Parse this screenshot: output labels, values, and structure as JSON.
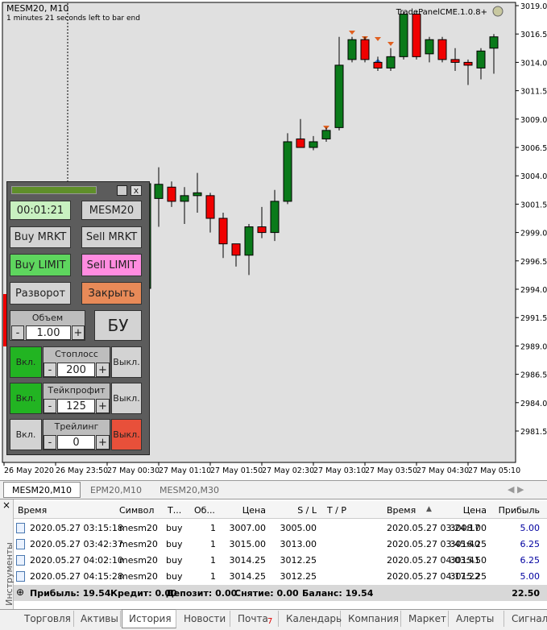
{
  "chart": {
    "symbol_title": "MESM20, M10",
    "timer_note": "1 minutes 21 seconds left to bar end",
    "expert": "TradePanelCME.1.0.8+",
    "price_ticks": [
      {
        "value": 3019,
        "label": "3019.00"
      },
      {
        "value": 3016.5,
        "label": "3016.50"
      },
      {
        "value": 3014,
        "label": "3014.00"
      },
      {
        "value": 3011.5,
        "label": "3011.50"
      },
      {
        "value": 3009,
        "label": "3009.00"
      },
      {
        "value": 3006.5,
        "label": "3006.50"
      },
      {
        "value": 3004,
        "label": "3004.00"
      },
      {
        "value": 3001.5,
        "label": "3001.50"
      },
      {
        "value": 2999,
        "label": "2999.00"
      },
      {
        "value": 2996.5,
        "label": "2996.50"
      },
      {
        "value": 2994,
        "label": "2994.00"
      },
      {
        "value": 2991.5,
        "label": "2991.50"
      },
      {
        "value": 2989,
        "label": "2989.00"
      },
      {
        "value": 2986.5,
        "label": "2986.50"
      },
      {
        "value": 2984,
        "label": "2984.00"
      },
      {
        "value": 2981.5,
        "label": "2981.50"
      }
    ],
    "time_labels": [
      "26 May 2020",
      "26 May 23:50",
      "27 May 00:30",
      "27 May 01:10",
      "27 May 01:50",
      "27 May 02:30",
      "27 May 03:10",
      "27 May 03:50",
      "27 May 04:30",
      "27 May 05:10"
    ],
    "candles": [
      {
        "open": 3002.0,
        "high": 3004.75,
        "low": 2999.5,
        "close": 3003.25
      },
      {
        "open": 3003.0,
        "high": 3003.5,
        "low": 3001.25,
        "close": 3001.75
      },
      {
        "open": 3001.75,
        "high": 3003.0,
        "low": 2999.75,
        "close": 3002.25
      },
      {
        "open": 3002.25,
        "high": 3004.25,
        "low": 3000.75,
        "close": 3002.5
      },
      {
        "open": 3002.25,
        "high": 3002.5,
        "low": 2999.0,
        "close": 3000.25
      },
      {
        "open": 3000.25,
        "high": 3000.75,
        "low": 2996.75,
        "close": 2998.0
      },
      {
        "open": 2998.0,
        "high": 2998.0,
        "low": 2996.0,
        "close": 2997.0
      },
      {
        "open": 2997.0,
        "high": 2999.75,
        "low": 2995.25,
        "close": 2999.5
      },
      {
        "open": 2999.5,
        "high": 3001.25,
        "low": 2998.5,
        "close": 2999.0
      },
      {
        "open": 2999.0,
        "high": 3002.75,
        "low": 2998.25,
        "close": 3001.75
      },
      {
        "open": 3001.75,
        "high": 3007.75,
        "low": 3001.5,
        "close": 3007.0
      },
      {
        "open": 3007.25,
        "high": 3009.0,
        "low": 3006.5,
        "close": 3006.5
      },
      {
        "open": 3006.5,
        "high": 3007.5,
        "low": 3006.25,
        "close": 3007.0
      },
      {
        "open": 3007.25,
        "high": 3008.25,
        "low": 3007.0,
        "close": 3008.0
      },
      {
        "open": 3008.25,
        "high": 3016.25,
        "low": 3008.0,
        "close": 3013.75
      },
      {
        "open": 3014.25,
        "high": 3016.25,
        "low": 3014.0,
        "close": 3016.0
      },
      {
        "open": 3016.0,
        "high": 3016.25,
        "low": 3014.0,
        "close": 3014.25
      },
      {
        "open": 3014.0,
        "high": 3014.5,
        "low": 3013.25,
        "close": 3013.5
      },
      {
        "open": 3013.5,
        "high": 3015.25,
        "low": 3013.25,
        "close": 3014.5
      },
      {
        "open": 3014.5,
        "high": 3018.5,
        "low": 3014.25,
        "close": 3018.25
      },
      {
        "open": 3018.25,
        "high": 3018.5,
        "low": 3014.25,
        "close": 3014.5
      },
      {
        "open": 3014.75,
        "high": 3016.25,
        "low": 3014.0,
        "close": 3016.0
      },
      {
        "open": 3016.0,
        "high": 3016.25,
        "low": 3014.0,
        "close": 3014.25
      },
      {
        "open": 3014.25,
        "high": 3015.25,
        "low": 3013.25,
        "close": 3014.0
      },
      {
        "open": 3014.0,
        "high": 3014.25,
        "low": 3012.0,
        "close": 3013.75
      },
      {
        "open": 3013.5,
        "high": 3015.25,
        "low": 3012.5,
        "close": 3015.0
      },
      {
        "open": 3015.25,
        "high": 3016.5,
        "low": 3013.0,
        "close": 3016.25
      }
    ]
  },
  "panel": {
    "timer": "00:01:21",
    "symbol": "MESM20",
    "close_window": "x",
    "buy_market": "Buy MRKT",
    "sell_market": "Sell MRKT",
    "buy_limit": "Buy LIMIT",
    "sell_limit": "Sell LIMIT",
    "reverse": "Разворот",
    "close_all": "Закрыть",
    "volume": {
      "label": "Объем",
      "minus": "-",
      "value": "1.00",
      "plus": "+"
    },
    "breakeven": "БУ",
    "stoploss": {
      "on": "Вкл.",
      "label": "Стоплосс",
      "minus": "-",
      "value": "200",
      "plus": "+",
      "off": "Выкл."
    },
    "takeprofit": {
      "on": "Вкл.",
      "label": "Тейкпрофит",
      "minus": "-",
      "value": "125",
      "plus": "+",
      "off": "Выкл."
    },
    "trailing": {
      "on": "Вкл.",
      "label": "Трейлинг",
      "minus": "-",
      "value": "0",
      "plus": "+",
      "off": "Выкл."
    }
  },
  "chart_tabs": [
    "MESM20,M10",
    "EPM20,M10",
    "MESM20,M30"
  ],
  "terminal": {
    "side_label": "Инструменты",
    "columns": [
      "Время",
      "Символ",
      "Т...",
      "Об...",
      "Цена",
      "S / L",
      "T / P",
      "Время",
      "Цена",
      "Прибыль"
    ],
    "rows": [
      {
        "open_time": "2020.05.27 03:15:18",
        "symbol": "mesm20",
        "type": "buy",
        "volume": 1,
        "price": "3007.00",
        "sl": "3005.00",
        "close_time": "2020.05.27 03:24:17",
        "close_price": "3008.00",
        "profit": "5.00"
      },
      {
        "open_time": "2020.05.27 03:42:37",
        "symbol": "mesm20",
        "type": "buy",
        "volume": 1,
        "price": "3015.00",
        "sl": "3013.00",
        "close_time": "2020.05.27 03:45:40",
        "close_price": "3016.25",
        "profit": "6.25"
      },
      {
        "open_time": "2020.05.27 04:02:10",
        "symbol": "mesm20",
        "type": "buy",
        "volume": 1,
        "price": "3014.25",
        "sl": "3012.25",
        "close_time": "2020.05.27 04:03:41",
        "close_price": "3015.50",
        "profit": "6.25"
      },
      {
        "open_time": "2020.05.27 04:15:28",
        "symbol": "mesm20",
        "type": "buy",
        "volume": 1,
        "price": "3014.25",
        "sl": "3012.25",
        "close_time": "2020.05.27 04:17:22",
        "close_price": "3015.25",
        "profit": "5.00"
      }
    ],
    "summary": [
      "Прибыль: 19.54",
      "Кредит: 0.00",
      "Депозит: 0.00",
      "Снятие: 0.00",
      "Баланс: 19.54"
    ],
    "summary_profit": "22.50",
    "tabs": [
      "Торговля",
      "Активы",
      "История",
      "Новости",
      "Почта",
      "Календарь",
      "Компания",
      "Маркет",
      "Алерты",
      "Сигналы"
    ],
    "mail_count": "7"
  }
}
